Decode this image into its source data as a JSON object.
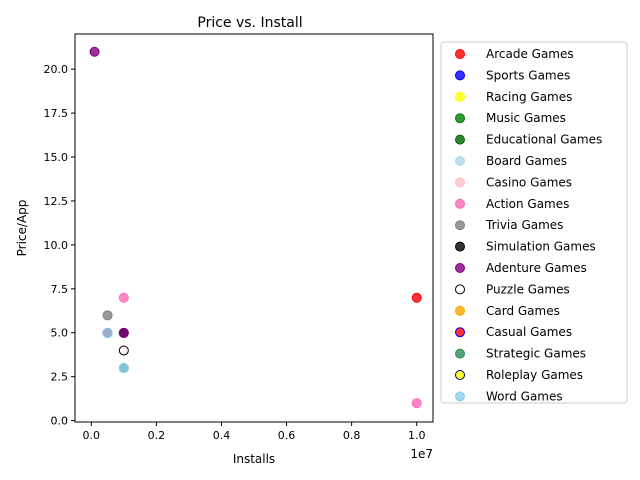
{
  "chart_data": {
    "type": "scatter",
    "title": "Price vs. Install",
    "xlabel": "Installs",
    "ylabel": "Price/App",
    "x_offset_label": "1e7",
    "xlim": [
      -0.05,
      1.05
    ],
    "ylim": [
      -0.08,
      22.0
    ],
    "x_ticks": [
      0.0,
      0.2,
      0.4,
      0.6,
      0.8,
      1.0
    ],
    "x_tick_labels": [
      "0.0",
      "0.2",
      "0.4",
      "0.6",
      "0.8",
      "1.0"
    ],
    "y_ticks": [
      0.0,
      2.5,
      5.0,
      7.5,
      10.0,
      12.5,
      15.0,
      17.5,
      20.0
    ],
    "y_tick_labels": [
      "0.0",
      "2.5",
      "5.0",
      "7.5",
      "10.0",
      "12.5",
      "15.0",
      "17.5",
      "20.0"
    ],
    "legend_position": "outside-right",
    "series": [
      {
        "name": "Arcade Games",
        "color": "#ff0000",
        "edge": "#ff0000",
        "points": [
          [
            1.0,
            6.99
          ]
        ]
      },
      {
        "name": "Sports Games",
        "color": "#0000ff",
        "edge": "#0000ff",
        "points": []
      },
      {
        "name": "Racing Games",
        "color": "#ffff00",
        "edge": "#ffff00",
        "points": []
      },
      {
        "name": "Music Games",
        "color": "#008000",
        "edge": "#008000",
        "points": []
      },
      {
        "name": "Educational Games",
        "color": "#006400",
        "edge": "#006400",
        "points": []
      },
      {
        "name": "Board Games",
        "color": "#add8e6",
        "edge": "#add8e6",
        "points": [
          [
            0.05,
            4.99
          ]
        ]
      },
      {
        "name": "Casino Games",
        "color": "#ffc0cb",
        "edge": "#ffc0cb",
        "points": [
          [
            0.1,
            3.99
          ]
        ]
      },
      {
        "name": "Action Games",
        "color": "#ff69b4",
        "edge": "#ff69b4",
        "points": [
          [
            0.1,
            6.99
          ],
          [
            1.0,
            0.99
          ],
          [
            0.1,
            4.99
          ]
        ]
      },
      {
        "name": "Trivia Games",
        "color": "#808080",
        "edge": "#808080",
        "points": [
          [
            0.05,
            5.99
          ]
        ]
      },
      {
        "name": "Simulation Games",
        "color": "#000000",
        "edge": "#000000",
        "points": [
          [
            0.1,
            4.99
          ]
        ]
      },
      {
        "name": "Adenture Games",
        "color": "#800080",
        "edge": "#800080",
        "points": [
          [
            0.01,
            20.99
          ],
          [
            0.1,
            4.99
          ]
        ]
      },
      {
        "name": "Puzzle Games",
        "color": "#ffffff",
        "edge": "#000000",
        "points": [
          [
            0.1,
            3.99
          ]
        ]
      },
      {
        "name": "Card Games",
        "color": "#ffa500",
        "edge": "#ffa500",
        "points": []
      },
      {
        "name": "Casual Games",
        "color": "#ff0000",
        "edge": "#0000ff",
        "points": [
          [
            0.05,
            4.99
          ]
        ]
      },
      {
        "name": "Strategic Games",
        "color": "#2e8b57",
        "edge": "#2e8b57",
        "points": [
          [
            0.1,
            2.99
          ]
        ]
      },
      {
        "name": "Roleplay Games",
        "color": "#ffff00",
        "edge": "#000080",
        "points": []
      },
      {
        "name": "Word Games",
        "color": "#87ceeb",
        "edge": "#87ceeb",
        "points": [
          [
            0.1,
            2.99
          ],
          [
            0.05,
            4.99
          ]
        ]
      }
    ]
  }
}
